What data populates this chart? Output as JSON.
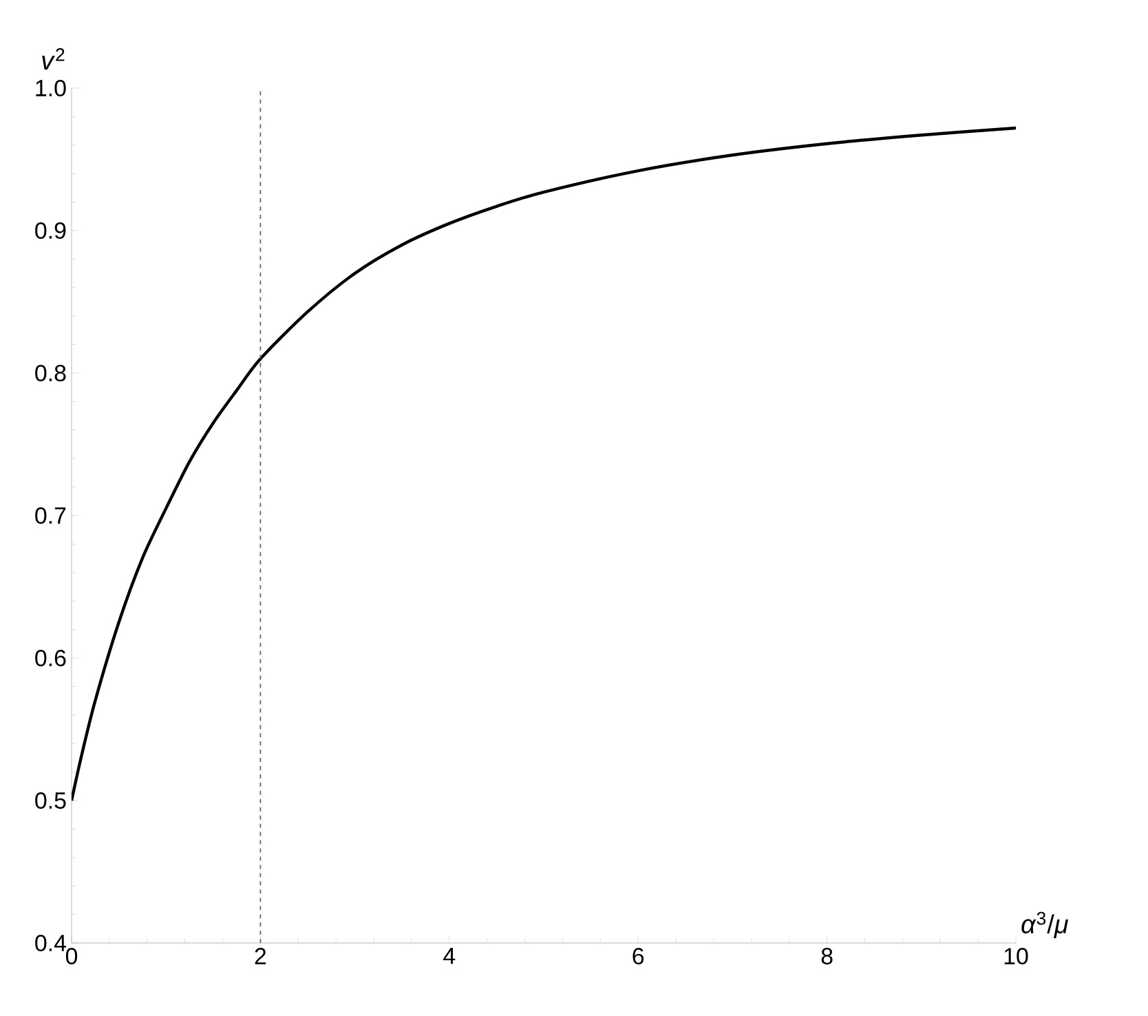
{
  "chart_data": {
    "type": "line",
    "xlabel": "*α*$^{3}$/*μ*",
    "ylabel": "*v*$^{2}$",
    "xlim": [
      0,
      10
    ],
    "ylim": [
      0.4,
      1.0
    ],
    "xticks": [
      0,
      2,
      4,
      6,
      8,
      10
    ],
    "yticks": [
      0.4,
      0.5,
      0.6,
      0.7,
      0.8,
      0.9,
      {
        "value": 1.0,
        "label": "1.0"
      }
    ],
    "grid": false,
    "marker": "none",
    "line_style": "solid",
    "series": [
      {
        "color": "#000000",
        "x": [
          0,
          0.1,
          0.25,
          0.5,
          0.75,
          1,
          1.25,
          1.5,
          1.75,
          2,
          2.5,
          3,
          3.5,
          4,
          4.5,
          5,
          6,
          7,
          8,
          9,
          10
        ],
        "values": [
          0.5,
          0.53,
          0.57,
          0.625,
          0.67,
          0.705,
          0.738,
          0.765,
          0.788,
          0.81,
          0.843,
          0.87,
          0.89,
          0.905,
          0.917,
          0.927,
          0.942,
          0.953,
          0.961,
          0.967,
          0.972
        ]
      }
    ],
    "ref_lines": [
      {
        "axis": "x",
        "value": 2,
        "color": "#666666",
        "line_style": "dashed"
      }
    ]
  }
}
